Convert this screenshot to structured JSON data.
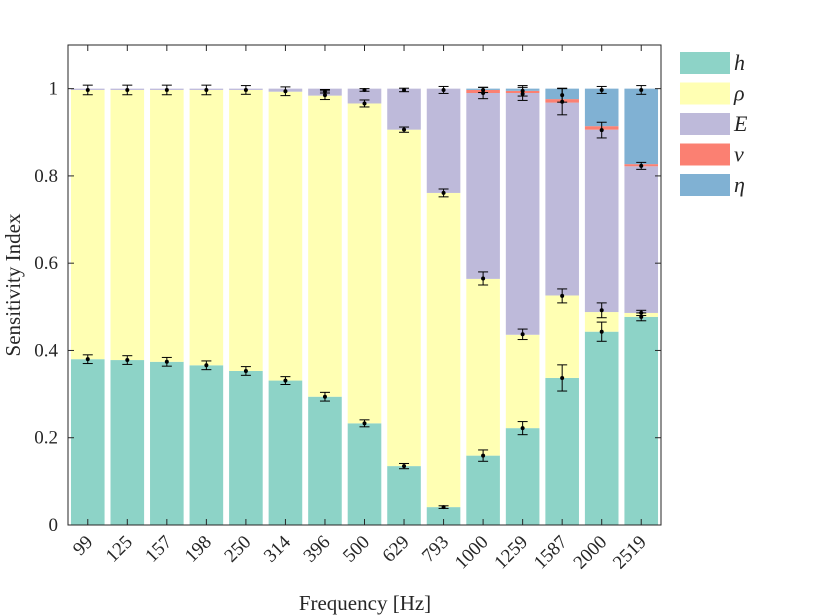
{
  "chart_data": {
    "type": "bar",
    "stacked": true,
    "xlabel": "Frequency [Hz]",
    "ylabel": "Sensitivity Index",
    "ylim": [
      0,
      1.1
    ],
    "yticks": [
      0,
      0.2,
      0.4,
      0.6,
      0.8,
      1
    ],
    "ytick_labels": [
      "0",
      "0.2",
      "0.4",
      "0.6",
      "0.8",
      "1"
    ],
    "categories": [
      "99",
      "125",
      "157",
      "198",
      "250",
      "314",
      "396",
      "500",
      "629",
      "793",
      "1000",
      "1259",
      "1587",
      "2000",
      "2519"
    ],
    "legend_position": "outside-right-top",
    "series": [
      {
        "name": "h",
        "color": "#8dd3c7",
        "values": [
          0.38,
          0.378,
          0.374,
          0.366,
          0.353,
          0.331,
          0.294,
          0.233,
          0.135,
          0.041,
          0.159,
          0.222,
          0.337,
          0.443,
          0.477
        ]
      },
      {
        "name": "ρ",
        "color": "#ffffb3",
        "values": [
          0.617,
          0.619,
          0.623,
          0.631,
          0.644,
          0.662,
          0.69,
          0.733,
          0.771,
          0.72,
          0.405,
          0.214,
          0.189,
          0.045,
          0.009
        ]
      },
      {
        "name": "E",
        "color": "#bebada",
        "values": [
          0.003,
          0.003,
          0.003,
          0.003,
          0.003,
          0.007,
          0.016,
          0.034,
          0.094,
          0.239,
          0.426,
          0.554,
          0.442,
          0.418,
          0.336
        ]
      },
      {
        "name": "ν",
        "color": "#fb8072",
        "values": [
          0,
          0,
          0,
          0,
          0,
          0,
          0,
          0,
          0,
          0,
          0.007,
          0.005,
          0.008,
          0.008,
          0.005
        ]
      },
      {
        "name": "η",
        "color": "#80b1d3",
        "values": [
          0,
          0,
          0,
          0,
          0,
          0,
          0,
          0,
          0,
          0,
          0.003,
          0.005,
          0.024,
          0.086,
          0.173
        ]
      }
    ],
    "error_markers": [
      {
        "category": "99",
        "points": [
          [
            0.38,
            0.01
          ],
          [
            0.997,
            0.011
          ]
        ]
      },
      {
        "category": "125",
        "points": [
          [
            0.378,
            0.01
          ],
          [
            0.997,
            0.011
          ]
        ]
      },
      {
        "category": "157",
        "points": [
          [
            0.374,
            0.01
          ],
          [
            0.997,
            0.011
          ]
        ]
      },
      {
        "category": "198",
        "points": [
          [
            0.366,
            0.01
          ],
          [
            0.997,
            0.011
          ]
        ]
      },
      {
        "category": "250",
        "points": [
          [
            0.353,
            0.01
          ],
          [
            0.997,
            0.01
          ]
        ]
      },
      {
        "category": "314",
        "points": [
          [
            0.331,
            0.009
          ],
          [
            0.994,
            0.01
          ]
        ]
      },
      {
        "category": "396",
        "points": [
          [
            0.294,
            0.01
          ],
          [
            0.985,
            0.01
          ],
          [
            0.994,
            0.004
          ]
        ]
      },
      {
        "category": "500",
        "points": [
          [
            0.233,
            0.008
          ],
          [
            0.966,
            0.008
          ],
          [
            0.997,
            0.003
          ]
        ]
      },
      {
        "category": "629",
        "points": [
          [
            0.135,
            0.006
          ],
          [
            0.906,
            0.006
          ],
          [
            0.997,
            0.004
          ]
        ]
      },
      {
        "category": "793",
        "points": [
          [
            0.041,
            0.003
          ],
          [
            0.761,
            0.009
          ],
          [
            0.997,
            0.008
          ]
        ]
      },
      {
        "category": "1000",
        "points": [
          [
            0.159,
            0.013
          ],
          [
            0.565,
            0.015
          ],
          [
            0.99,
            0.013
          ],
          [
            0.997,
            0.006
          ]
        ]
      },
      {
        "category": "1259",
        "points": [
          [
            0.222,
            0.015
          ],
          [
            0.437,
            0.012
          ],
          [
            0.988,
            0.015
          ],
          [
            0.995,
            0.012
          ]
        ]
      },
      {
        "category": "1587",
        "points": [
          [
            0.337,
            0.03
          ],
          [
            0.525,
            0.016
          ],
          [
            0.97,
            0.03
          ],
          [
            0.985,
            0.016
          ]
        ]
      },
      {
        "category": "2000",
        "points": [
          [
            0.443,
            0.022
          ],
          [
            0.492,
            0.017
          ],
          [
            0.905,
            0.018
          ],
          [
            0.997,
            0.008
          ]
        ]
      },
      {
        "category": "2519",
        "points": [
          [
            0.477,
            0.009
          ],
          [
            0.486,
            0.006
          ],
          [
            0.823,
            0.008
          ],
          [
            0.997,
            0.01
          ]
        ]
      }
    ]
  }
}
